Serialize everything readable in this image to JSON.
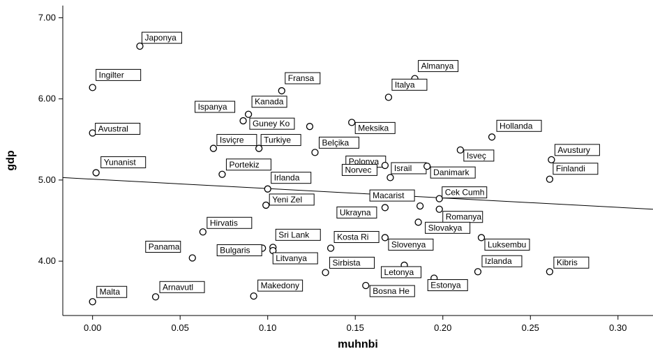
{
  "chart_data": {
    "type": "scatter",
    "title": "",
    "xlabel": "muhnbi",
    "ylabel": "gdp",
    "xlim": [
      -0.017,
      0.32
    ],
    "ylim": [
      3.33,
      7.15
    ],
    "x_ticks": [
      "0.00",
      "0.05",
      "0.10",
      "0.15",
      "0.20",
      "0.25",
      "0.30"
    ],
    "y_ticks": [
      "4.00",
      "5.00",
      "6.00",
      "7.00"
    ],
    "grid": false,
    "legend": "none",
    "marker_color": "#000000",
    "fit_line": {
      "x": [
        -0.017,
        0.32
      ],
      "y": [
        5.03,
        4.64
      ]
    },
    "points": [
      {
        "label": "Japonya",
        "x": 0.027,
        "y": 6.65
      },
      {
        "label": "Ingilter",
        "x": 0.0,
        "y": 6.14
      },
      {
        "label": "Almanya",
        "x": 0.184,
        "y": 6.25
      },
      {
        "label": "Fransa",
        "x": 0.108,
        "y": 6.1
      },
      {
        "label": "Italya",
        "x": 0.169,
        "y": 6.02
      },
      {
        "label": "Kanada",
        "x": 0.089,
        "y": 5.81
      },
      {
        "label": "Ispanya",
        "x": 0.086,
        "y": 5.73
      },
      {
        "label": "Guney Ko",
        "x": 0.124,
        "y": 5.66
      },
      {
        "label": "Meksika",
        "x": 0.148,
        "y": 5.71
      },
      {
        "label": "Avustral",
        "x": 0.0,
        "y": 5.58
      },
      {
        "label": "Hollanda",
        "x": 0.228,
        "y": 5.53
      },
      {
        "label": "Isviçre",
        "x": 0.069,
        "y": 5.39
      },
      {
        "label": "Turkiye",
        "x": 0.095,
        "y": 5.39
      },
      {
        "label": "Belçika",
        "x": 0.127,
        "y": 5.34
      },
      {
        "label": "Isveç",
        "x": 0.21,
        "y": 5.37
      },
      {
        "label": "Avustury",
        "x": 0.262,
        "y": 5.25
      },
      {
        "label": "Polonya",
        "x": 0.155,
        "y": 5.21
      },
      {
        "label": "Israil",
        "x": 0.167,
        "y": 5.18
      },
      {
        "label": "Danimark",
        "x": 0.191,
        "y": 5.17
      },
      {
        "label": "Norvec",
        "x": 0.17,
        "y": 5.03
      },
      {
        "label": "Yunanist",
        "x": 0.002,
        "y": 5.09
      },
      {
        "label": "Portekiz",
        "x": 0.074,
        "y": 5.07
      },
      {
        "label": "Finlandi",
        "x": 0.261,
        "y": 5.01
      },
      {
        "label": "Irlanda",
        "x": 0.1,
        "y": 4.89
      },
      {
        "label": "Cek Cumh",
        "x": 0.198,
        "y": 4.77
      },
      {
        "label": "Yeni Zel",
        "x": 0.099,
        "y": 4.69
      },
      {
        "label": "Macarist",
        "x": 0.187,
        "y": 4.68
      },
      {
        "label": "Ukrayna",
        "x": 0.167,
        "y": 4.66
      },
      {
        "label": "Romanya",
        "x": 0.198,
        "y": 4.64
      },
      {
        "label": "Slovakya",
        "x": 0.186,
        "y": 4.48
      },
      {
        "label": "Hirvatis",
        "x": 0.063,
        "y": 4.36
      },
      {
        "label": "Luksembu",
        "x": 0.222,
        "y": 4.29
      },
      {
        "label": "Kosta Ri",
        "x": 0.136,
        "y": 4.16
      },
      {
        "label": "Slovenya",
        "x": 0.167,
        "y": 4.29
      },
      {
        "label": "Sri Lank",
        "x": 0.103,
        "y": 4.17
      },
      {
        "label": "Litvanya",
        "x": 0.103,
        "y": 4.13
      },
      {
        "label": "Bulgaris",
        "x": 0.097,
        "y": 4.16
      },
      {
        "label": "Panama",
        "x": 0.057,
        "y": 4.04
      },
      {
        "label": "Sirbista",
        "x": 0.133,
        "y": 3.86
      },
      {
        "label": "Letonya",
        "x": 0.178,
        "y": 3.95
      },
      {
        "label": "Izlanda",
        "x": 0.22,
        "y": 3.87
      },
      {
        "label": "Kibris",
        "x": 0.261,
        "y": 3.87
      },
      {
        "label": "Estonya",
        "x": 0.195,
        "y": 3.79
      },
      {
        "label": "Bosna He",
        "x": 0.156,
        "y": 3.7
      },
      {
        "label": "Arnavutl",
        "x": 0.036,
        "y": 3.56
      },
      {
        "label": "Makedony",
        "x": 0.092,
        "y": 3.57
      },
      {
        "label": "Malta",
        "x": 0.0,
        "y": 3.5
      }
    ]
  }
}
